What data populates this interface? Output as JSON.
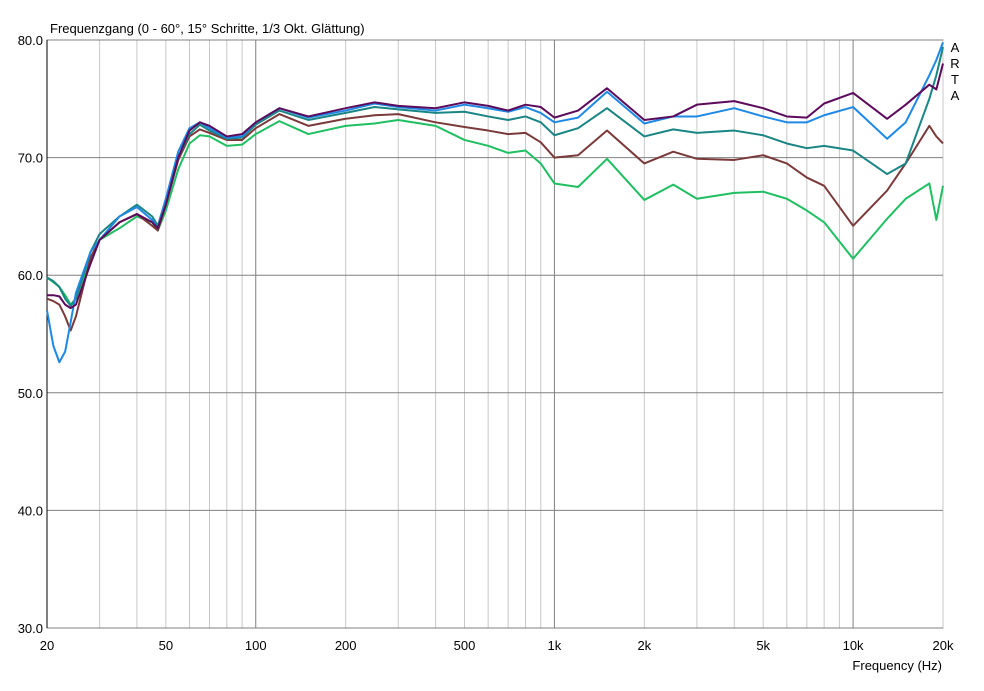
{
  "chart_data": {
    "type": "line",
    "title": "Frequenzgang (0 - 60°, 15° Schritte, 1/3 Okt. Glättung)",
    "x_label": "Frequency (Hz)",
    "annotation": "ARTA",
    "x_log": true,
    "grid": true,
    "xlim": [
      20,
      20000
    ],
    "ylim": [
      30,
      80
    ],
    "xticks": [
      20,
      50,
      100,
      200,
      500,
      {
        "value": 1000,
        "label": "1k"
      },
      {
        "value": 2000,
        "label": "2k"
      },
      {
        "value": 5000,
        "label": "5k"
      },
      {
        "value": 10000,
        "label": "10k"
      },
      {
        "value": 20000,
        "label": "20k"
      }
    ],
    "xgrid_minor": [
      30,
      40,
      60,
      70,
      80,
      90,
      300,
      400,
      600,
      700,
      800,
      900,
      3000,
      4000,
      6000,
      7000,
      8000,
      9000
    ],
    "yticks": [
      {
        "value": 30,
        "label": "30.0"
      },
      {
        "value": 40,
        "label": "40.0"
      },
      {
        "value": 50,
        "label": "50.0"
      },
      {
        "value": 60,
        "label": "60.0"
      },
      {
        "value": 70,
        "label": "70.0"
      },
      {
        "value": 80,
        "label": "80.0"
      }
    ],
    "x": [
      20,
      21,
      22,
      23,
      24,
      25,
      28,
      30,
      35,
      40,
      45,
      47,
      50,
      55,
      60,
      65,
      70,
      80,
      90,
      100,
      120,
      150,
      200,
      250,
      300,
      400,
      500,
      600,
      700,
      800,
      900,
      1000,
      1200,
      1500,
      2000,
      2500,
      3000,
      4000,
      5000,
      6000,
      7000,
      8000,
      10000,
      13000,
      15000,
      18000,
      19000,
      20000
    ],
    "series": [
      {
        "color": "#1fbf62",
        "values": [
          59.8,
          59.4,
          59,
          58.3,
          57.5,
          58,
          61.5,
          63,
          64,
          65,
          64.5,
          63.8,
          65.5,
          69,
          71.2,
          71.9,
          71.8,
          71,
          71.1,
          72,
          73.1,
          72,
          72.7,
          72.9,
          73.2,
          72.7,
          71.5,
          71,
          70.4,
          70.6,
          69.5,
          67.8,
          67.5,
          69.9,
          66.4,
          67.7,
          66.5,
          67,
          67.1,
          66.5,
          65.5,
          64.5,
          61.4,
          64.8,
          66.5,
          67.8,
          64.7,
          67.6
        ]
      },
      {
        "color": "#7b3a3a",
        "values": [
          58,
          57.8,
          57.5,
          56.5,
          55.3,
          56.5,
          61.5,
          63,
          64.5,
          65.2,
          64.2,
          63.8,
          66,
          69.8,
          71.8,
          72.4,
          72.1,
          71.5,
          71.5,
          72.5,
          73.7,
          72.7,
          73.3,
          73.6,
          73.7,
          73,
          72.6,
          72.3,
          72,
          72.1,
          71.3,
          70,
          70.2,
          72.3,
          69.5,
          70.5,
          69.9,
          69.8,
          70.2,
          69.5,
          68.3,
          67.6,
          64.2,
          67.2,
          69.5,
          72.7,
          71.8,
          71.2
        ]
      },
      {
        "color": "#1a8585",
        "values": [
          59.8,
          59.5,
          59,
          58,
          57.4,
          58,
          62,
          63.5,
          65,
          66,
          65,
          64.2,
          66.5,
          70,
          72,
          72.8,
          72.3,
          71.6,
          71.7,
          72.8,
          74,
          73.2,
          73.8,
          74.3,
          74.1,
          73.8,
          73.9,
          73.5,
          73.2,
          73.5,
          73,
          71.9,
          72.5,
          74.2,
          71.8,
          72.4,
          72.1,
          72.3,
          71.9,
          71.2,
          70.8,
          71,
          70.6,
          68.6,
          69.5,
          75,
          77,
          79.4
        ]
      },
      {
        "color": "#1e88e5",
        "values": [
          57,
          54,
          52.6,
          53.5,
          56,
          58.5,
          62,
          63,
          65,
          65.8,
          64.7,
          64,
          66.5,
          70.5,
          72.5,
          73,
          72.5,
          71.7,
          71.8,
          73,
          74.2,
          73.4,
          74,
          74.6,
          74.3,
          74,
          74.5,
          74.2,
          73.9,
          74.3,
          73.8,
          73,
          73.4,
          75.6,
          72.9,
          73.5,
          73.5,
          74.2,
          73.5,
          73,
          73,
          73.6,
          74.3,
          71.6,
          73,
          77,
          78.3,
          79.8
        ]
      },
      {
        "color": "#5c0a5c",
        "values": [
          58.3,
          58.3,
          58.2,
          57.5,
          57.2,
          57.5,
          61,
          63,
          64.5,
          65.2,
          64.5,
          64,
          66,
          70,
          72.3,
          73,
          72.7,
          71.8,
          72,
          73,
          74.2,
          73.5,
          74.2,
          74.7,
          74.4,
          74.2,
          74.7,
          74.4,
          74,
          74.5,
          74.3,
          73.4,
          74,
          75.9,
          73.2,
          73.5,
          74.5,
          74.8,
          74.2,
          73.5,
          73.4,
          74.6,
          75.5,
          73.3,
          74.5,
          76.2,
          75.8,
          78
        ]
      }
    ]
  }
}
